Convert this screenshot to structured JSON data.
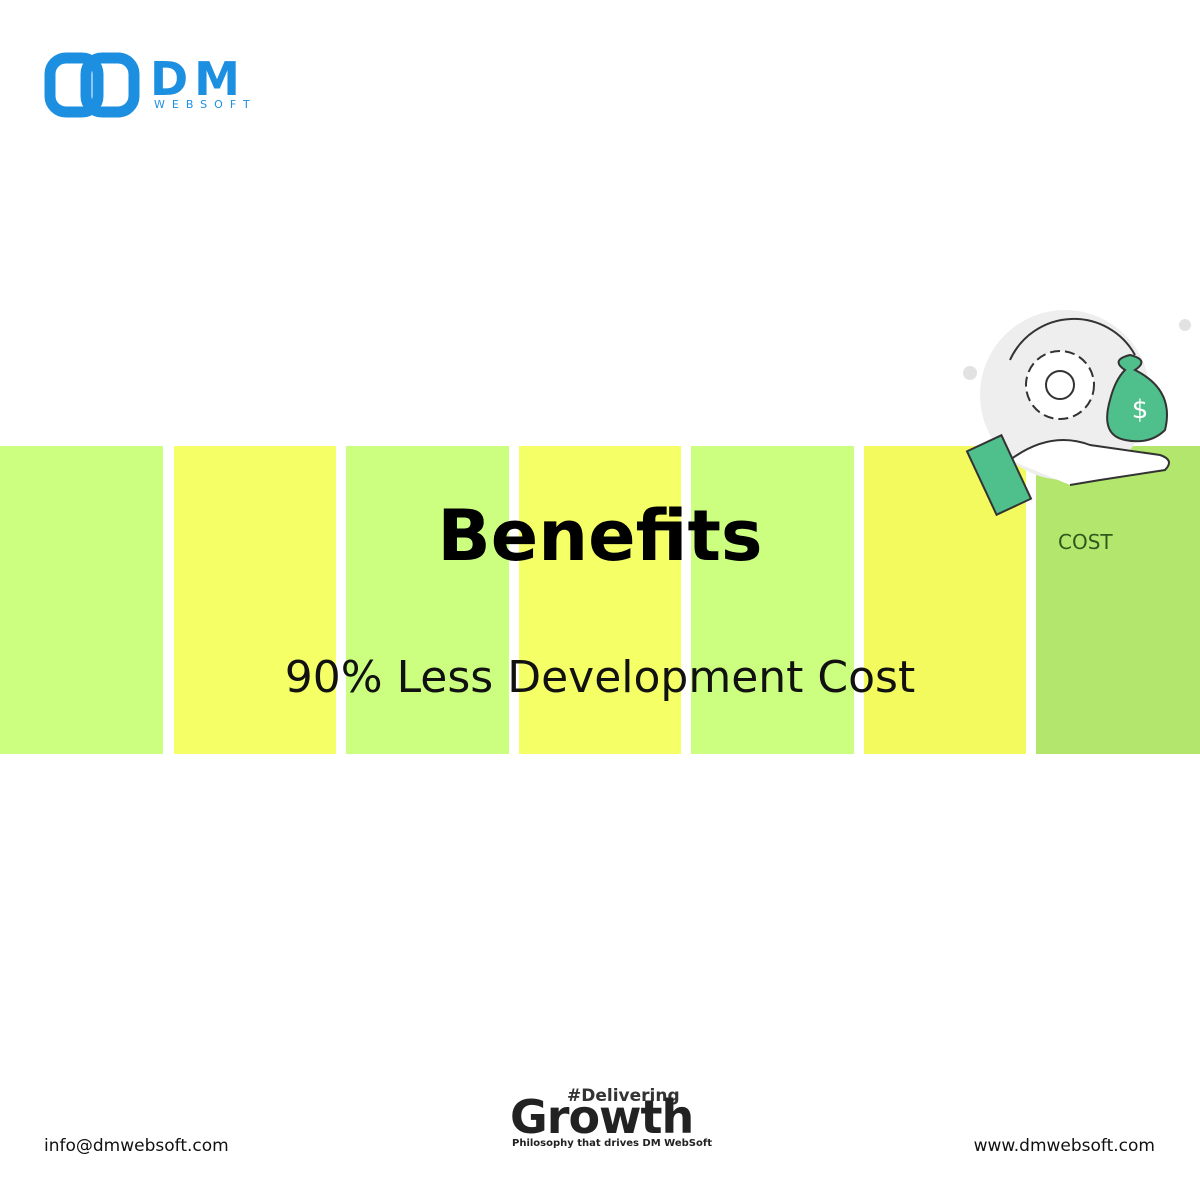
{
  "logo": {
    "name": "DM",
    "sub": "WEBSOFT"
  },
  "heading": {
    "title": "Benefits",
    "subtitle": "90% Less Development Cost",
    "badge": "COST"
  },
  "tagline": {
    "hashtag": "#Delivering",
    "word": "Growth",
    "caption": "Philosophy that drives DM WebSoft"
  },
  "footer": {
    "email": "info@dmwebsoft.com",
    "website": "www.dmwebsoft.com"
  }
}
